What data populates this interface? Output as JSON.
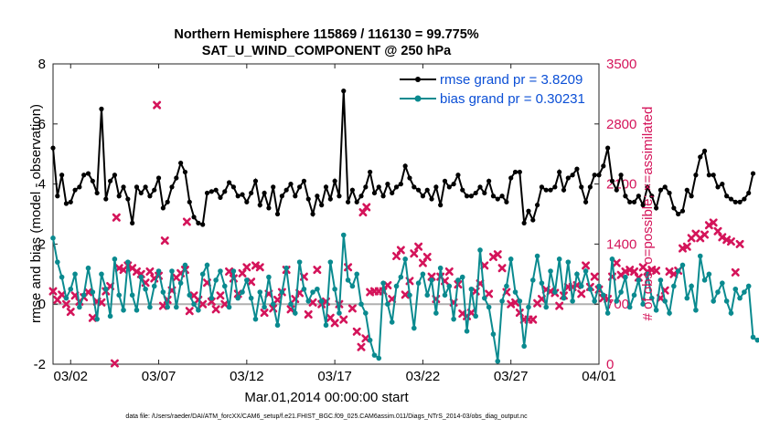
{
  "chart_data": {
    "type": "line",
    "title_line1": "Northern Hemisphere 115869 / 116130 = 99.775%",
    "title_line2": "SAT_U_WIND_COMPONENT @ 250 hPa",
    "xlabel": "Mar.01,2014 00:00:00 start",
    "ylabel_left": "rmse and bias (model - observation)",
    "ylabel_right": "# of obs: o=possible; ×=assimilated",
    "footnote": "data file: /Users/raeder/DAI/ATM_forcXX/CAM6_setup/f.e21.FHIST_BGC.f09_025.CAM6assim.011/Diags_NTrS_2014-03/obs_diag_output.nc",
    "x_range": [
      1.0,
      32.0
    ],
    "y_left_range": [
      -2,
      8
    ],
    "y_right_range": [
      0,
      3500
    ],
    "x_tick_positions": [
      2,
      7,
      12,
      17,
      22,
      27,
      32
    ],
    "x_tick_labels": [
      "03/02",
      "03/07",
      "03/12",
      "03/17",
      "03/22",
      "03/27",
      "04/01"
    ],
    "y_left_ticks": [
      -2,
      0,
      2,
      4,
      6,
      8
    ],
    "y_right_ticks": [
      0,
      700,
      1400,
      2100,
      2800,
      3500
    ],
    "zero_line": 0,
    "legend": [
      "rmse grand pr = 3.8209",
      "bias grand pr = 0.30231"
    ],
    "x_step_days": 0.25,
    "series": [
      {
        "name": "rmse",
        "color": "#000000",
        "marker": "star",
        "values": [
          5.2,
          3.6,
          4.3,
          3.35,
          3.4,
          3.8,
          3.9,
          4.3,
          4.35,
          4.1,
          3.7,
          6.5,
          3.5,
          4.1,
          4.3,
          3.6,
          3.9,
          3.5,
          2.7,
          3.9,
          3.7,
          3.9,
          3.6,
          3.8,
          4.2,
          3.2,
          3.4,
          3.9,
          4.2,
          4.7,
          4.4,
          3.4,
          2.9,
          2.7,
          2.65,
          3.7,
          3.75,
          3.8,
          3.55,
          3.75,
          4.05,
          3.9,
          3.6,
          3.65,
          3.4,
          3.7,
          4.1,
          3.3,
          3.7,
          3.2,
          3.9,
          3.0,
          3.6,
          3.8,
          4.0,
          3.6,
          3.9,
          4.1,
          3.5,
          3.0,
          3.6,
          3.3,
          3.9,
          3.5,
          4.1,
          3.6,
          7.1,
          3.4,
          3.8,
          3.4,
          3.6,
          3.9,
          4.4,
          3.7,
          3.9,
          3.6,
          4.0,
          3.7,
          3.9,
          4.0,
          4.6,
          4.2,
          3.9,
          3.8,
          3.6,
          3.8,
          3.5,
          3.9,
          3.3,
          4.1,
          3.9,
          4.0,
          4.3,
          3.8,
          3.6,
          3.6,
          3.7,
          3.9,
          3.7,
          4.1,
          3.6,
          3.5,
          3.6,
          3.4,
          4.2,
          4.4,
          4.4,
          2.7,
          3.1,
          2.8,
          3.3,
          3.9,
          3.8,
          3.8,
          3.9,
          4.4,
          3.8,
          4.2,
          4.3,
          4.5,
          3.9,
          3.4,
          3.9,
          4.3,
          4.3,
          4.6,
          5.2,
          4.1,
          3.8,
          4.3,
          3.6,
          3.4,
          3.4,
          3.6,
          3.3,
          3.9,
          3.6,
          3.2,
          3.8,
          3.9,
          3.7,
          3.2,
          3.0,
          3.1,
          3.8,
          3.6,
          4.3,
          4.9,
          5.1,
          4.3,
          4.3,
          3.9,
          4.0,
          3.6,
          3.5,
          3.4,
          3.4,
          3.5,
          3.7,
          4.35
        ]
      },
      {
        "name": "bias",
        "color": "#0a8a8f",
        "marker": "dot",
        "values": [
          2.2,
          1.4,
          0.9,
          0.2,
          0.5,
          1.0,
          -0.1,
          0.3,
          1.2,
          0.4,
          -0.5,
          1.0,
          0.5,
          -0.4,
          1.5,
          0.3,
          -0.2,
          1.4,
          0.3,
          -0.2,
          0.9,
          0.5,
          -0.1,
          0.6,
          1.1,
          0.4,
          -0.1,
          1.1,
          -0.1,
          0.7,
          1.3,
          0.3,
          0.0,
          -0.2,
          1.0,
          1.3,
          0.2,
          0.8,
          1.1,
          0.6,
          -0.1,
          1.1,
          0.2,
          0.4,
          0.8,
          0.2,
          -0.5,
          0.4,
          -0.1,
          0.9,
          0.0,
          -0.7,
          0.4,
          1.2,
          0.0,
          -0.3,
          1.4,
          0.5,
          0.1,
          0.4,
          0.5,
          0.1,
          -0.7,
          1.4,
          0.5,
          -0.3,
          2.3,
          0.8,
          0.6,
          1.0,
          0.0,
          -0.3,
          -1.2,
          -1.7,
          -1.8,
          0.7,
          0.0,
          -0.6,
          0.6,
          0.9,
          1.5,
          0.3,
          -0.8,
          0.7,
          1.0,
          0.3,
          0.8,
          -0.3,
          1.2,
          0.3,
          0.6,
          -0.5,
          0.8,
          0.9,
          -0.9,
          0.5,
          -0.4,
          1.8,
          0.2,
          -0.1,
          -1.0,
          -1.9,
          0.1,
          0.6,
          1.5,
          0.4,
          0.1,
          -1.4,
          -0.1,
          0.8,
          1.6,
          0.7,
          -0.1,
          1.1,
          0.4,
          1.5,
          0.2,
          1.4,
          0.1,
          1.0,
          0.6,
          1.1,
          0.5,
          0.1,
          0.6,
          0.3,
          -0.3,
          1.5,
          0.1,
          0.4,
          0.9,
          -0.1,
          0.3,
          0.8,
          0.0,
          1.0,
          0.2,
          -0.2,
          0.8,
          0.1,
          -0.3,
          0.6,
          1.1,
          1.3,
          0.2,
          0.6,
          -0.2,
          1.6,
          0.8,
          1.0,
          0.1,
          0.4,
          0.7,
          0.1,
          -0.3,
          0.5,
          0.2,
          0.4,
          0.6,
          -1.1,
          -1.2
        ]
      },
      {
        "name": "obs_assimilated",
        "color": "#d4145a",
        "marker": "x",
        "axis": "right",
        "values": [
          850,
          750,
          810,
          700,
          610,
          800,
          730,
          780,
          840,
          540,
          730,
          720,
          850,
          910,
          10,
          1120,
          1100,
          1150,
          1120,
          1080,
          1050,
          950,
          1080,
          1000,
          1030,
          680,
          750,
          860,
          1010,
          1060,
          1100,
          620,
          800,
          750,
          700,
          950,
          730,
          640,
          800,
          700,
          1080,
          1000,
          820,
          1060,
          1130,
          960,
          1150,
          1130,
          600,
          820,
          650,
          750,
          840,
          1100,
          640,
          760,
          830,
          1020,
          580,
          720,
          1100,
          700,
          730,
          540,
          480,
          700,
          520,
          1130,
          650,
          380,
          200,
          300,
          840,
          850,
          850,
          850,
          920,
          760,
          1260,
          1330,
          810,
          970,
          1290,
          1370,
          1180,
          1250,
          1020,
          760,
          1020,
          970,
          1080,
          720,
          930,
          590,
          560,
          600,
          850,
          940,
          1150,
          820,
          1250,
          1280,
          1120,
          840,
          700,
          720,
          600,
          520,
          520,
          520,
          710,
          760,
          870,
          850,
          830,
          680,
          800,
          900,
          900,
          920,
          820,
          1150,
          900,
          1020,
          870,
          770,
          760,
          1020,
          1180,
          1040,
          1080,
          1100,
          1080,
          1010,
          1130,
          1080,
          1100,
          1090,
          770,
          860,
          1080,
          1050,
          1090,
          1350,
          1370,
          1470,
          1520,
          1470,
          1510,
          1620,
          1650,
          1550,
          1480,
          1450,
          1430,
          1070,
          1400
        ]
      },
      {
        "name": "obs_possible",
        "color": "#d4145a",
        "marker": "o",
        "axis": "right",
        "values": []
      }
    ],
    "extra_obs_points": [
      {
        "x": 4.6,
        "y": 1710
      },
      {
        "x": 6.9,
        "y": 3020
      },
      {
        "x": 7.35,
        "y": 1440
      },
      {
        "x": 8.6,
        "y": 1660
      },
      {
        "x": 18.8,
        "y": 1830
      },
      {
        "x": 18.6,
        "y": 1770
      }
    ]
  }
}
